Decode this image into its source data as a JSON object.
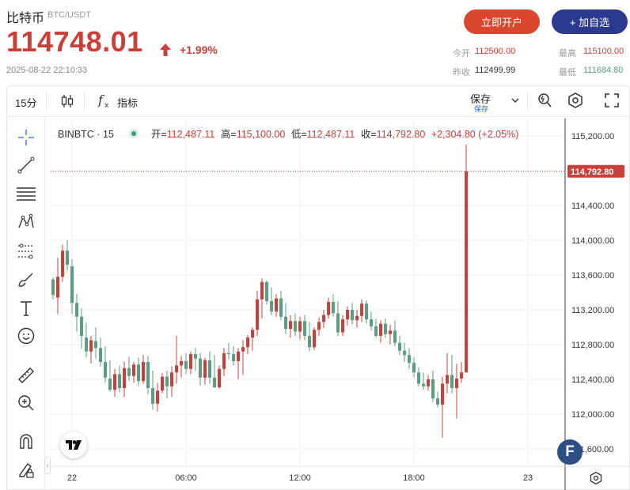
{
  "header": {
    "title": "比特币",
    "pair": "BTC/USDT",
    "price": "114748.01",
    "change": "+1.99%",
    "datetime": "2025-08-22 22:10:33",
    "open_btn": "立即开户",
    "add_btn": "+ 加自选",
    "stats": {
      "open_label": "今开",
      "open_value": "112500.00",
      "high_label": "最高",
      "high_value": "115100.00",
      "prev_label": "昨收",
      "prev_value": "112499.99",
      "low_label": "最低",
      "low_value": "111684.80"
    },
    "colors": {
      "up": "#c9403a",
      "down": "#5a9d7f",
      "accent_open": "#d9472f",
      "accent_add": "#2b3a8f"
    }
  },
  "toolbar": {
    "interval": "15分",
    "indicators": "指标",
    "save": "保存",
    "save_sub": "保存"
  },
  "legend": {
    "symbol": "BINBTC · 15",
    "o_label": "开",
    "o": "112,487.11",
    "h_label": "高",
    "h": "115,100.00",
    "l_label": "低",
    "l": "112,487.11",
    "c_label": "收",
    "c": "114,792.80",
    "chg": "+2,304.80 (+2.05%)"
  },
  "chart_data": {
    "type": "candlestick",
    "last_price_label": "114,792.80",
    "last_price": 114792.8,
    "y_ticks": [
      "115,200.00",
      "114,800.00",
      "114,400.00",
      "114,000.00",
      "113,600.00",
      "113,200.00",
      "112,800.00",
      "112,400.00",
      "112,000.00",
      "111,600.00"
    ],
    "y_tick_values": [
      115200,
      114800,
      114400,
      114000,
      113600,
      113200,
      112800,
      112400,
      112000,
      111600
    ],
    "ylim": [
      111400,
      115400
    ],
    "x_ticks": [
      "22",
      "06:00",
      "12:00",
      "18:00",
      "23"
    ],
    "x_tick_index": [
      4,
      28,
      52,
      76,
      100
    ],
    "candles": [
      [
        113550,
        113570,
        113320,
        113370
      ],
      [
        113340,
        113800,
        113150,
        113580
      ],
      [
        113580,
        113950,
        113520,
        113880
      ],
      [
        113880,
        114000,
        113650,
        113720
      ],
      [
        113700,
        113780,
        113150,
        113280
      ],
      [
        113280,
        113380,
        112950,
        113120
      ],
      [
        113120,
        113220,
        112750,
        112900
      ],
      [
        112880,
        113050,
        112650,
        112720
      ],
      [
        112720,
        112900,
        112580,
        112850
      ],
      [
        112840,
        113000,
        112640,
        112760
      ],
      [
        112760,
        112880,
        112550,
        112600
      ],
      [
        112600,
        112780,
        112360,
        112420
      ],
      [
        112410,
        112620,
        112260,
        112280
      ],
      [
        112280,
        112520,
        112200,
        112460
      ],
      [
        112460,
        112560,
        112250,
        112300
      ],
      [
        112300,
        112600,
        112200,
        112530
      ],
      [
        112530,
        112660,
        112380,
        112440
      ],
      [
        112440,
        112600,
        112360,
        112570
      ],
      [
        112570,
        112650,
        112320,
        112380
      ],
      [
        112380,
        112680,
        112350,
        112600
      ],
      [
        112600,
        112670,
        112230,
        112300
      ],
      [
        112300,
        112500,
        112050,
        112120
      ],
      [
        112120,
        112360,
        112030,
        112270
      ],
      [
        112270,
        112470,
        112240,
        112430
      ],
      [
        112430,
        112500,
        112180,
        112320
      ],
      [
        112320,
        112550,
        112200,
        112480
      ],
      [
        112480,
        112900,
        112350,
        112560
      ],
      [
        112560,
        112670,
        112420,
        112610
      ],
      [
        112610,
        112700,
        112460,
        112520
      ],
      [
        112520,
        112720,
        112460,
        112690
      ],
      [
        112690,
        112760,
        112500,
        112640
      ],
      [
        112640,
        112700,
        112330,
        112420
      ],
      [
        112420,
        112650,
        112340,
        112620
      ],
      [
        112620,
        112720,
        112350,
        112420
      ],
      [
        112420,
        112680,
        112300,
        112310
      ],
      [
        112310,
        112560,
        112290,
        112520
      ],
      [
        112520,
        112760,
        112440,
        112700
      ],
      [
        112700,
        112820,
        112630,
        112690
      ],
      [
        112690,
        112780,
        112560,
        112610
      ],
      [
        112610,
        112760,
        112400,
        112720
      ],
      [
        112720,
        112850,
        112450,
        112770
      ],
      [
        112770,
        112910,
        112690,
        112880
      ],
      [
        112880,
        113000,
        112730,
        112970
      ],
      [
        112970,
        113420,
        112900,
        113320
      ],
      [
        113320,
        113560,
        113100,
        113520
      ],
      [
        113520,
        113540,
        113260,
        113300
      ],
      [
        113300,
        113460,
        113140,
        113180
      ],
      [
        113180,
        113380,
        113120,
        113330
      ],
      [
        113330,
        113420,
        113080,
        113120
      ],
      [
        113120,
        113280,
        112920,
        112980
      ],
      [
        112980,
        113140,
        112880,
        113070
      ],
      [
        113070,
        113160,
        112900,
        112950
      ],
      [
        112950,
        113120,
        112860,
        113070
      ],
      [
        113070,
        113140,
        112850,
        112900
      ],
      [
        112900,
        113060,
        112720,
        112770
      ],
      [
        112770,
        113000,
        112740,
        112970
      ],
      [
        112970,
        113110,
        112900,
        113060
      ],
      [
        113060,
        113200,
        112990,
        113140
      ],
      [
        113140,
        113340,
        113100,
        113290
      ],
      [
        113290,
        113380,
        113120,
        113160
      ],
      [
        113160,
        113300,
        112900,
        112940
      ],
      [
        112940,
        113140,
        112900,
        113090
      ],
      [
        113090,
        113240,
        113020,
        113200
      ],
      [
        113200,
        113280,
        113030,
        113080
      ],
      [
        113080,
        113200,
        113000,
        113130
      ],
      [
        113130,
        113320,
        113060,
        113270
      ],
      [
        113270,
        113310,
        113040,
        113090
      ],
      [
        113090,
        113180,
        112960,
        113010
      ],
      [
        113010,
        113100,
        112880,
        112900
      ],
      [
        112900,
        113080,
        112820,
        113040
      ],
      [
        113040,
        113100,
        112880,
        112920
      ],
      [
        112920,
        113030,
        112800,
        112960
      ],
      [
        112960,
        113080,
        112780,
        112820
      ],
      [
        112820,
        112900,
        112680,
        112730
      ],
      [
        112730,
        112820,
        112600,
        112680
      ],
      [
        112680,
        112760,
        112520,
        112590
      ],
      [
        112590,
        112660,
        112420,
        112480
      ],
      [
        112480,
        112540,
        112320,
        112350
      ],
      [
        112350,
        112480,
        112280,
        112320
      ],
      [
        112320,
        112450,
        112270,
        112400
      ],
      [
        112400,
        112500,
        112140,
        112180
      ],
      [
        112180,
        112260,
        112080,
        112110
      ],
      [
        112110,
        112430,
        111730,
        112350
      ],
      [
        112350,
        112700,
        112240,
        112450
      ],
      [
        112450,
        112680,
        112240,
        112300
      ],
      [
        112300,
        112580,
        111950,
        112410
      ],
      [
        112410,
        112600,
        112360,
        112480
      ],
      [
        112480,
        115100,
        112480,
        114792.8
      ]
    ]
  }
}
